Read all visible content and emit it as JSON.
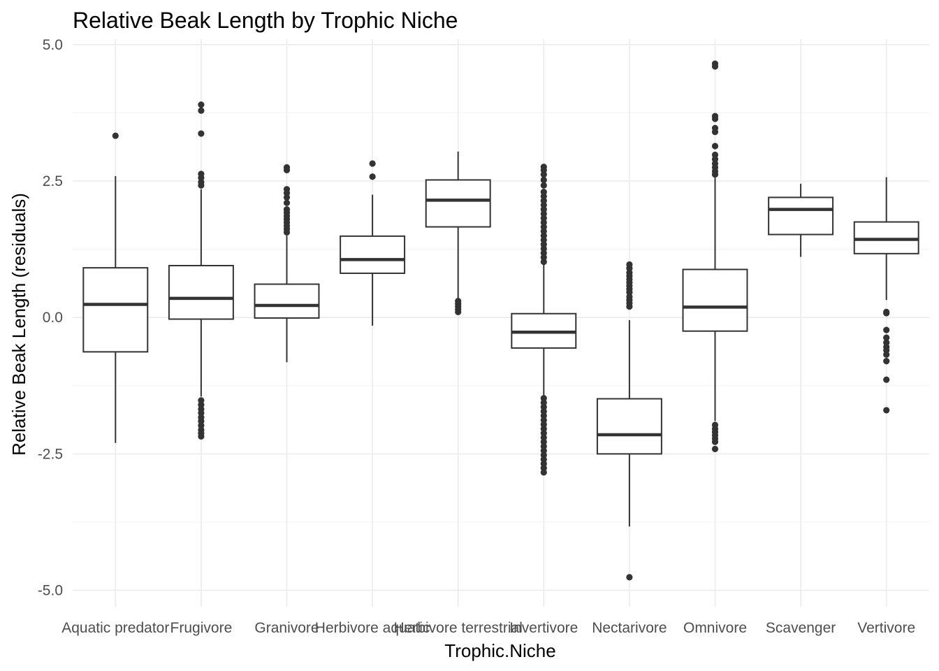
{
  "chart_data": {
    "type": "box",
    "title": "Relative Beak Length by Trophic Niche",
    "xlabel": "Trophic.Niche",
    "ylabel": "Relative Beak Length (residuals)",
    "ylim": [
      -5.3,
      5.1
    ],
    "yticks": [
      -5.0,
      -2.5,
      0.0,
      2.5,
      5.0
    ],
    "ytick_labels": [
      "-5.0",
      "-2.5",
      "0.0",
      "2.5",
      "5.0"
    ],
    "grid": true,
    "box_color": "#333333",
    "categories": [
      "Aquatic predator",
      "Frugivore",
      "Granivore",
      "Herbivore aquatic",
      "Herbivore terrestrial",
      "Invertivore",
      "Nectarivore",
      "Omnivore",
      "Scavenger",
      "Vertivore"
    ],
    "boxes": [
      {
        "category": "Aquatic predator",
        "whisker_low": -2.3,
        "q1": -0.63,
        "median": 0.24,
        "q3": 0.91,
        "whisker_high": 2.59,
        "outliers": [
          3.33
        ]
      },
      {
        "category": "Frugivore",
        "whisker_low": -1.45,
        "q1": -0.03,
        "median": 0.35,
        "q3": 0.95,
        "whisker_high": 2.35,
        "outliers": [
          2.42,
          2.48,
          2.56,
          2.63,
          3.37,
          3.79,
          3.9,
          -1.52,
          -1.6,
          -1.68,
          -1.75,
          -1.83,
          -1.9,
          -1.98,
          -2.06,
          -2.12,
          -2.18
        ]
      },
      {
        "category": "Granivore",
        "whisker_low": -0.82,
        "q1": -0.01,
        "median": 0.22,
        "q3": 0.61,
        "whisker_high": 1.5,
        "outliers": [
          1.56,
          1.62,
          1.68,
          1.74,
          1.8,
          1.86,
          1.92,
          1.98,
          2.1,
          2.2,
          2.28,
          2.35,
          2.7,
          2.75
        ]
      },
      {
        "category": "Herbivore aquatic",
        "whisker_low": -0.15,
        "q1": 0.81,
        "median": 1.06,
        "q3": 1.49,
        "whisker_high": 2.25,
        "outliers": [
          2.58,
          2.82
        ]
      },
      {
        "category": "Herbivore terrestrial",
        "whisker_low": 0.32,
        "q1": 1.66,
        "median": 2.15,
        "q3": 2.52,
        "whisker_high": 3.04,
        "outliers": [
          0.1,
          0.15,
          0.2,
          0.25,
          0.3
        ]
      },
      {
        "category": "Invertivore",
        "whisker_low": -1.43,
        "q1": -0.56,
        "median": -0.27,
        "q3": 0.07,
        "whisker_high": 0.98,
        "outliers": [
          1.02,
          1.1,
          1.18,
          1.26,
          1.34,
          1.42,
          1.5,
          1.58,
          1.66,
          1.74,
          1.82,
          1.9,
          1.98,
          2.06,
          2.14,
          2.22,
          2.3,
          2.42,
          2.52,
          2.62,
          2.7,
          2.76,
          -1.48,
          -1.56,
          -1.64,
          -1.72,
          -1.8,
          -1.88,
          -1.96,
          -2.04,
          -2.12,
          -2.2,
          -2.28,
          -2.36,
          -2.44,
          -2.52,
          -2.6,
          -2.68,
          -2.76,
          -2.84
        ]
      },
      {
        "category": "Nectarivore",
        "whisker_low": -3.83,
        "q1": -2.5,
        "median": -2.15,
        "q3": -1.49,
        "whisker_high": -0.05,
        "outliers": [
          0.2,
          0.26,
          0.32,
          0.38,
          0.46,
          0.52,
          0.58,
          0.64,
          0.7,
          0.76,
          0.82,
          0.9,
          0.97,
          -4.76
        ]
      },
      {
        "category": "Omnivore",
        "whisker_low": -1.9,
        "q1": -0.25,
        "median": 0.19,
        "q3": 0.88,
        "whisker_high": 2.56,
        "outliers": [
          2.62,
          2.68,
          2.75,
          2.82,
          2.9,
          2.98,
          3.14,
          3.4,
          3.47,
          3.64,
          3.69,
          4.6,
          4.65,
          -1.97,
          -2.04,
          -2.1,
          -2.16,
          -2.22,
          -2.28,
          -2.41
        ]
      },
      {
        "category": "Scavenger",
        "whisker_low": 1.11,
        "q1": 1.52,
        "median": 1.98,
        "q3": 2.2,
        "whisker_high": 2.45,
        "outliers": []
      },
      {
        "category": "Vertivore",
        "whisker_low": 0.32,
        "q1": 1.17,
        "median": 1.43,
        "q3": 1.75,
        "whisker_high": 2.57,
        "outliers": [
          0.08,
          0.1,
          -0.23,
          -0.37,
          -0.46,
          -0.54,
          -0.6,
          -0.68,
          -0.8,
          -1.14,
          -1.7
        ]
      }
    ]
  }
}
